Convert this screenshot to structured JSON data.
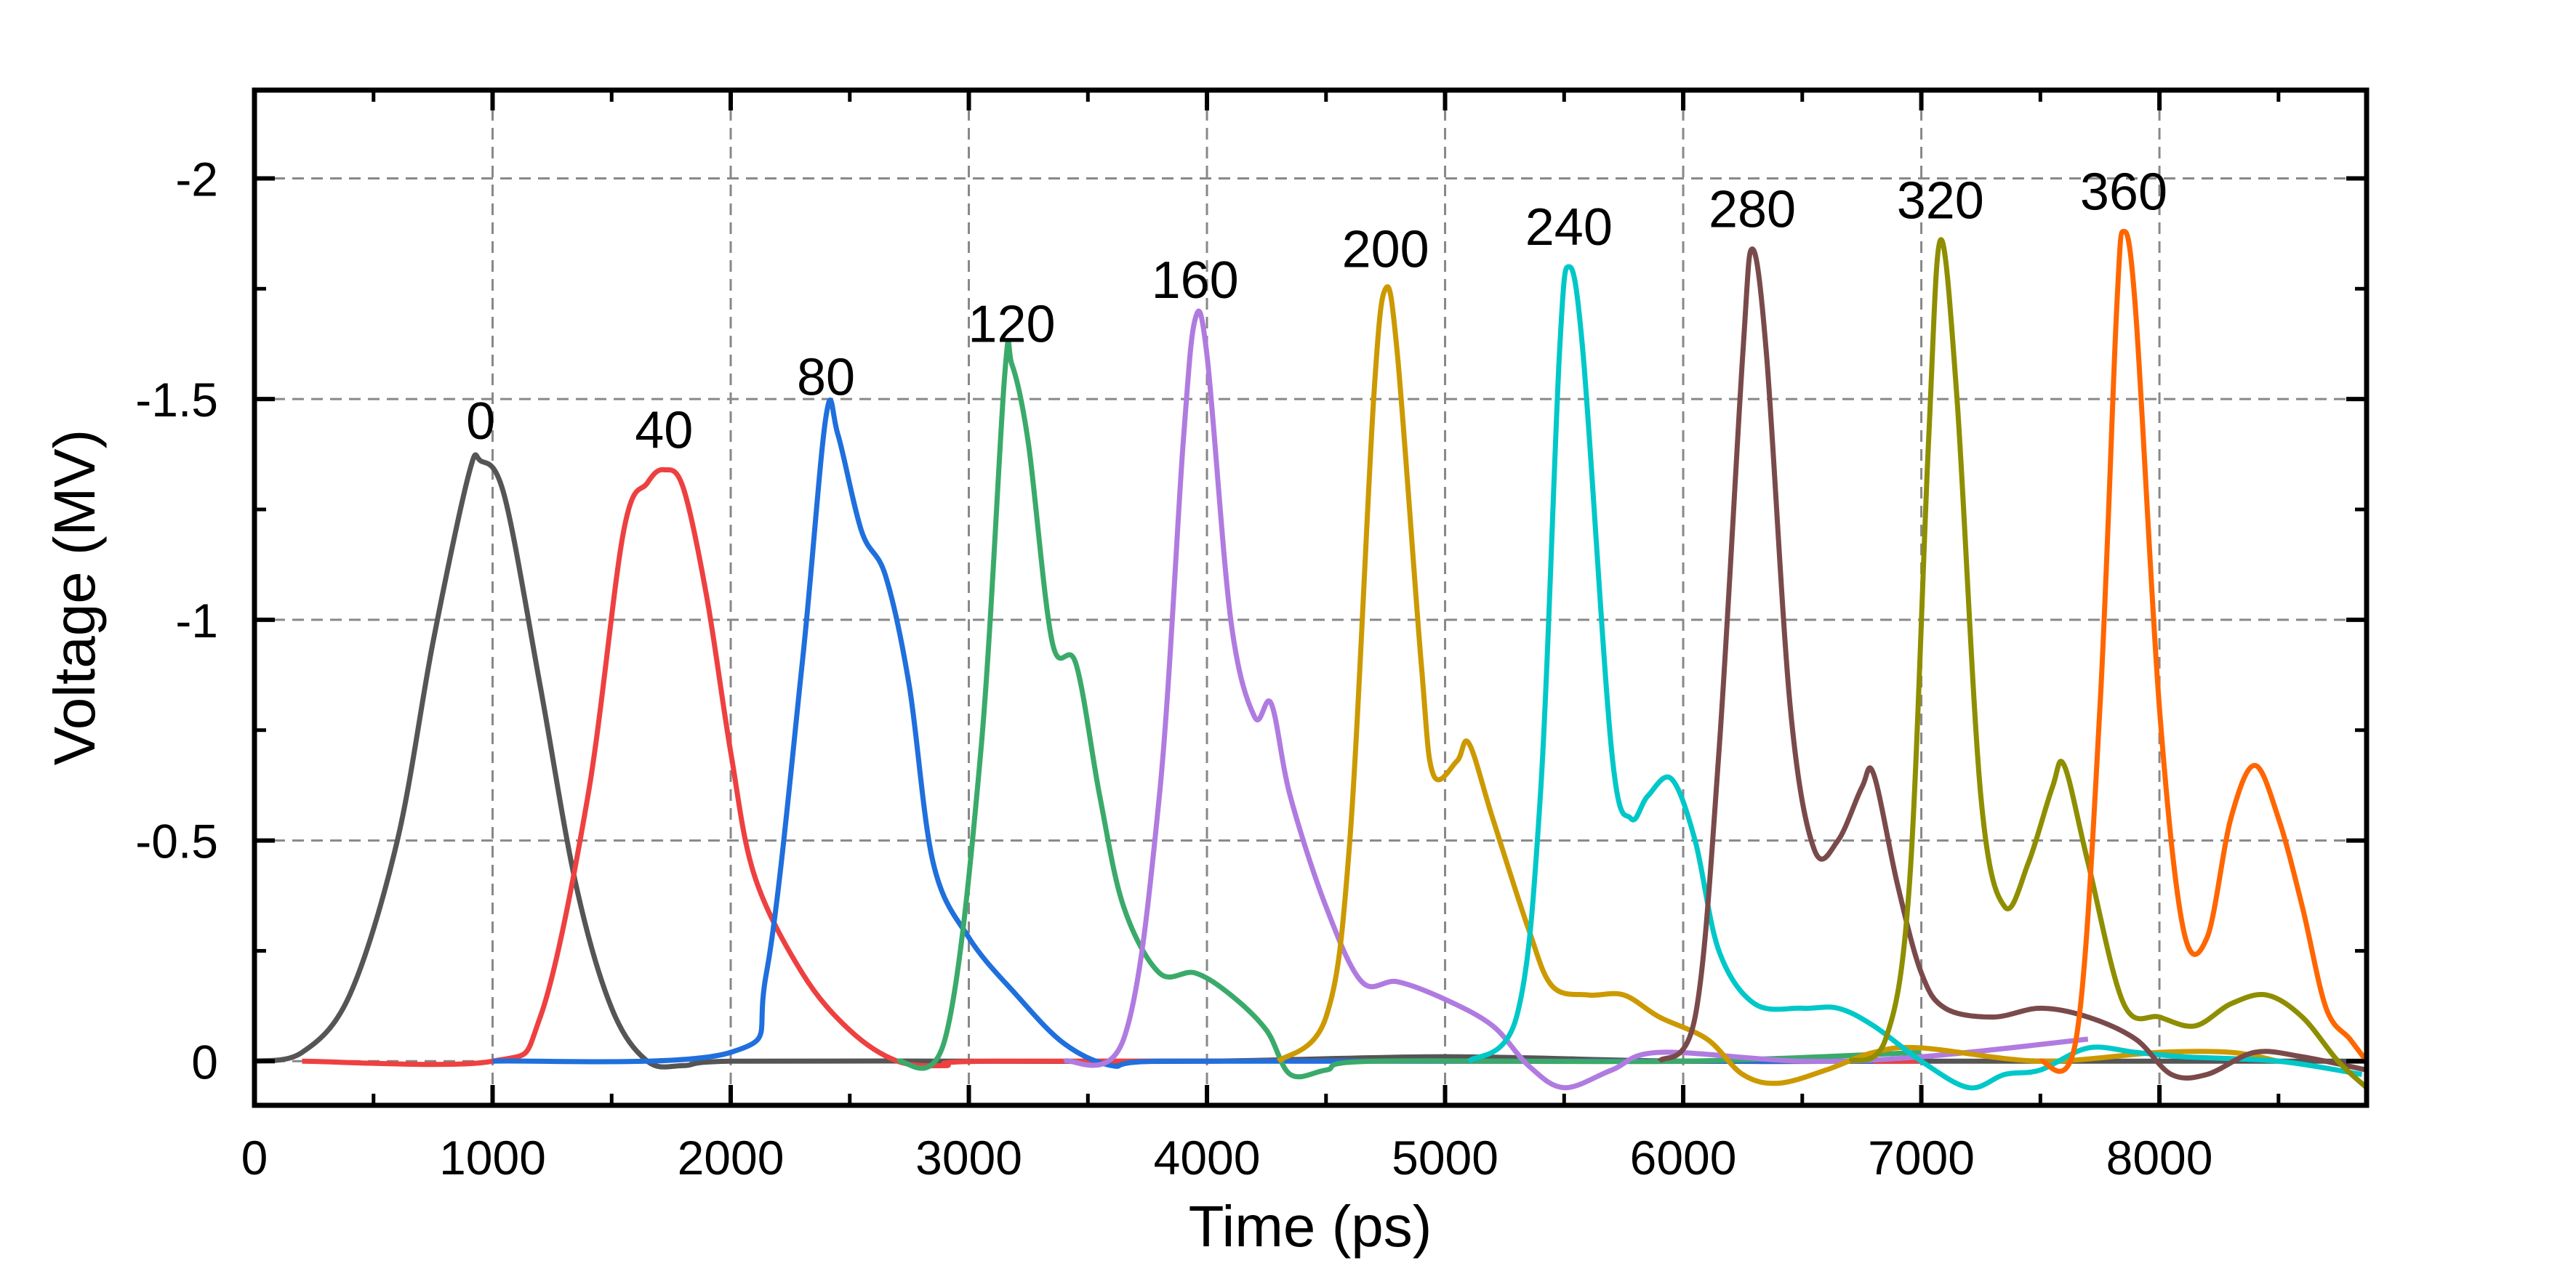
{
  "chart_data": {
    "type": "line",
    "title": "",
    "xlabel": "Time (ps)",
    "ylabel": "Voltage (MV)",
    "xlim": [
      0,
      8870
    ],
    "ylim": [
      0.1,
      -2.2
    ],
    "y_axis_inverted": true,
    "grid": true,
    "grid_style": "dashed",
    "legend": "none",
    "x_ticks": [
      0,
      1000,
      2000,
      3000,
      4000,
      5000,
      6000,
      7000,
      8000
    ],
    "x_tick_labels": [
      "0",
      "1000",
      "2000",
      "3000",
      "4000",
      "5000",
      "6000",
      "7000",
      "8000"
    ],
    "y_ticks": [
      -2,
      -1.5,
      -1,
      -0.5,
      0
    ],
    "y_tick_labels": [
      "-2",
      "-1.5",
      "-1",
      "-0.5",
      "0"
    ],
    "series": [
      {
        "label": "0",
        "color": "#555555",
        "x": [
          0,
          200,
          400,
          600,
          750,
          900,
          950,
          1050,
          1200,
          1350,
          1500,
          1650,
          1800,
          2000,
          3000,
          4000,
          5000,
          6000,
          7000,
          8000,
          8870
        ],
        "y": [
          0,
          -0.02,
          -0.15,
          -0.5,
          -0.95,
          -1.33,
          -1.36,
          -1.28,
          -0.85,
          -0.4,
          -0.12,
          0,
          0.01,
          0,
          0,
          0,
          -0.01,
          0,
          0,
          0,
          0
        ]
      },
      {
        "label": "40",
        "color": "#EE4040",
        "x": [
          200,
          1000,
          1200,
          1400,
          1550,
          1650,
          1720,
          1800,
          1900,
          2000,
          2100,
          2300,
          2500,
          2700,
          2900,
          3100,
          5000,
          7000
        ],
        "y": [
          0,
          0,
          -0.1,
          -0.6,
          -1.2,
          -1.31,
          -1.34,
          -1.3,
          -1.05,
          -0.7,
          -0.42,
          -0.2,
          -0.07,
          0,
          0.01,
          0,
          0,
          0
        ]
      },
      {
        "label": "80",
        "color": "#1F6FDD",
        "x": [
          1000,
          2000,
          2150,
          2300,
          2400,
          2450,
          2550,
          2650,
          2750,
          2850,
          3000,
          3200,
          3400,
          3600,
          3800,
          5000,
          6800
        ],
        "y": [
          0,
          -0.02,
          -0.2,
          -0.9,
          -1.46,
          -1.42,
          -1.2,
          -1.1,
          -0.85,
          -0.45,
          -0.28,
          -0.15,
          -0.04,
          0.01,
          0,
          0,
          0
        ]
      },
      {
        "label": "120",
        "color": "#3AAA6A",
        "x": [
          2700,
          2900,
          3050,
          3150,
          3180,
          3250,
          3350,
          3450,
          3550,
          3650,
          3800,
          3950,
          4100,
          4250,
          4350,
          4500,
          4700,
          6000,
          7000
        ],
        "y": [
          0,
          -0.05,
          -0.7,
          -1.55,
          -1.58,
          -1.4,
          -0.95,
          -0.9,
          -0.6,
          -0.35,
          -0.2,
          -0.2,
          -0.15,
          -0.07,
          0.03,
          0.02,
          0,
          0,
          -0.02
        ]
      },
      {
        "label": "160",
        "color": "#B07BE0",
        "x": [
          3400,
          3650,
          3800,
          3900,
          3950,
          4000,
          4100,
          4200,
          4270,
          4350,
          4500,
          4650,
          4800,
          5000,
          5200,
          5350,
          5500,
          5700,
          5900,
          6500,
          7000,
          7700
        ],
        "y": [
          0,
          -0.05,
          -0.6,
          -1.4,
          -1.68,
          -1.6,
          -1.0,
          -0.78,
          -0.81,
          -0.6,
          -0.35,
          -0.18,
          -0.18,
          -0.14,
          -0.08,
          0.01,
          0.06,
          0.02,
          -0.02,
          0,
          -0.01,
          -0.05
        ]
      },
      {
        "label": "200",
        "color": "#CC9900",
        "x": [
          4300,
          4500,
          4600,
          4700,
          4750,
          4800,
          4900,
          4950,
          5050,
          5100,
          5200,
          5350,
          5450,
          5600,
          5750,
          5900,
          6100,
          6250,
          6400,
          6600,
          6800,
          7000,
          7500,
          8000,
          8300,
          8500
        ],
        "y": [
          0,
          -0.1,
          -0.5,
          -1.5,
          -1.75,
          -1.6,
          -0.9,
          -0.65,
          -0.68,
          -0.72,
          -0.55,
          -0.3,
          -0.17,
          -0.15,
          -0.15,
          -0.1,
          -0.05,
          0.03,
          0.05,
          0.02,
          -0.02,
          -0.03,
          0,
          -0.02,
          -0.02,
          0
        ]
      },
      {
        "label": "240",
        "color": "#00C8C8",
        "x": [
          5100,
          5300,
          5400,
          5480,
          5520,
          5580,
          5700,
          5780,
          5850,
          5950,
          6050,
          6150,
          6300,
          6500,
          6650,
          6800,
          7000,
          7200,
          7350,
          7500,
          7700,
          7900,
          8100,
          8500,
          8850
        ],
        "y": [
          0,
          -0.1,
          -0.6,
          -1.6,
          -1.8,
          -1.6,
          -0.7,
          -0.55,
          -0.6,
          -0.64,
          -0.5,
          -0.25,
          -0.13,
          -0.12,
          -0.12,
          -0.08,
          0,
          0.06,
          0.03,
          0.02,
          -0.03,
          -0.02,
          -0.01,
          0,
          0.03
        ]
      },
      {
        "label": "280",
        "color": "#7A4A4A",
        "x": [
          5900,
          6050,
          6150,
          6250,
          6290,
          6350,
          6450,
          6550,
          6650,
          6750,
          6800,
          6900,
          7000,
          7100,
          7300,
          7500,
          7700,
          7900,
          8050,
          8200,
          8400,
          8600,
          8870
        ],
        "y": [
          0,
          -0.1,
          -0.7,
          -1.6,
          -1.84,
          -1.6,
          -0.8,
          -0.48,
          -0.5,
          -0.62,
          -0.65,
          -0.4,
          -0.2,
          -0.12,
          -0.1,
          -0.12,
          -0.1,
          -0.05,
          0.03,
          0.03,
          -0.02,
          -0.01,
          0.02
        ]
      },
      {
        "label": "320",
        "color": "#8E8E00",
        "x": [
          6700,
          6850,
          6950,
          7030,
          7080,
          7150,
          7250,
          7350,
          7450,
          7550,
          7600,
          7700,
          7850,
          8000,
          8150,
          8300,
          8450,
          8600,
          8750,
          8870
        ],
        "y": [
          0,
          -0.05,
          -0.4,
          -1.4,
          -1.86,
          -1.5,
          -0.6,
          -0.35,
          -0.45,
          -0.62,
          -0.67,
          -0.45,
          -0.13,
          -0.1,
          -0.08,
          -0.13,
          -0.15,
          -0.1,
          0,
          0.06
        ]
      },
      {
        "label": "360",
        "color": "#FF6600",
        "x": [
          7500,
          7650,
          7750,
          7820,
          7850,
          7900,
          8000,
          8100,
          8200,
          8300,
          8400,
          8500,
          8600,
          8700,
          8800,
          8870
        ],
        "y": [
          0,
          -0.05,
          -0.8,
          -1.7,
          -1.88,
          -1.7,
          -0.8,
          -0.3,
          -0.28,
          -0.55,
          -0.67,
          -0.55,
          -0.35,
          -0.12,
          -0.05,
          0
        ]
      }
    ]
  }
}
